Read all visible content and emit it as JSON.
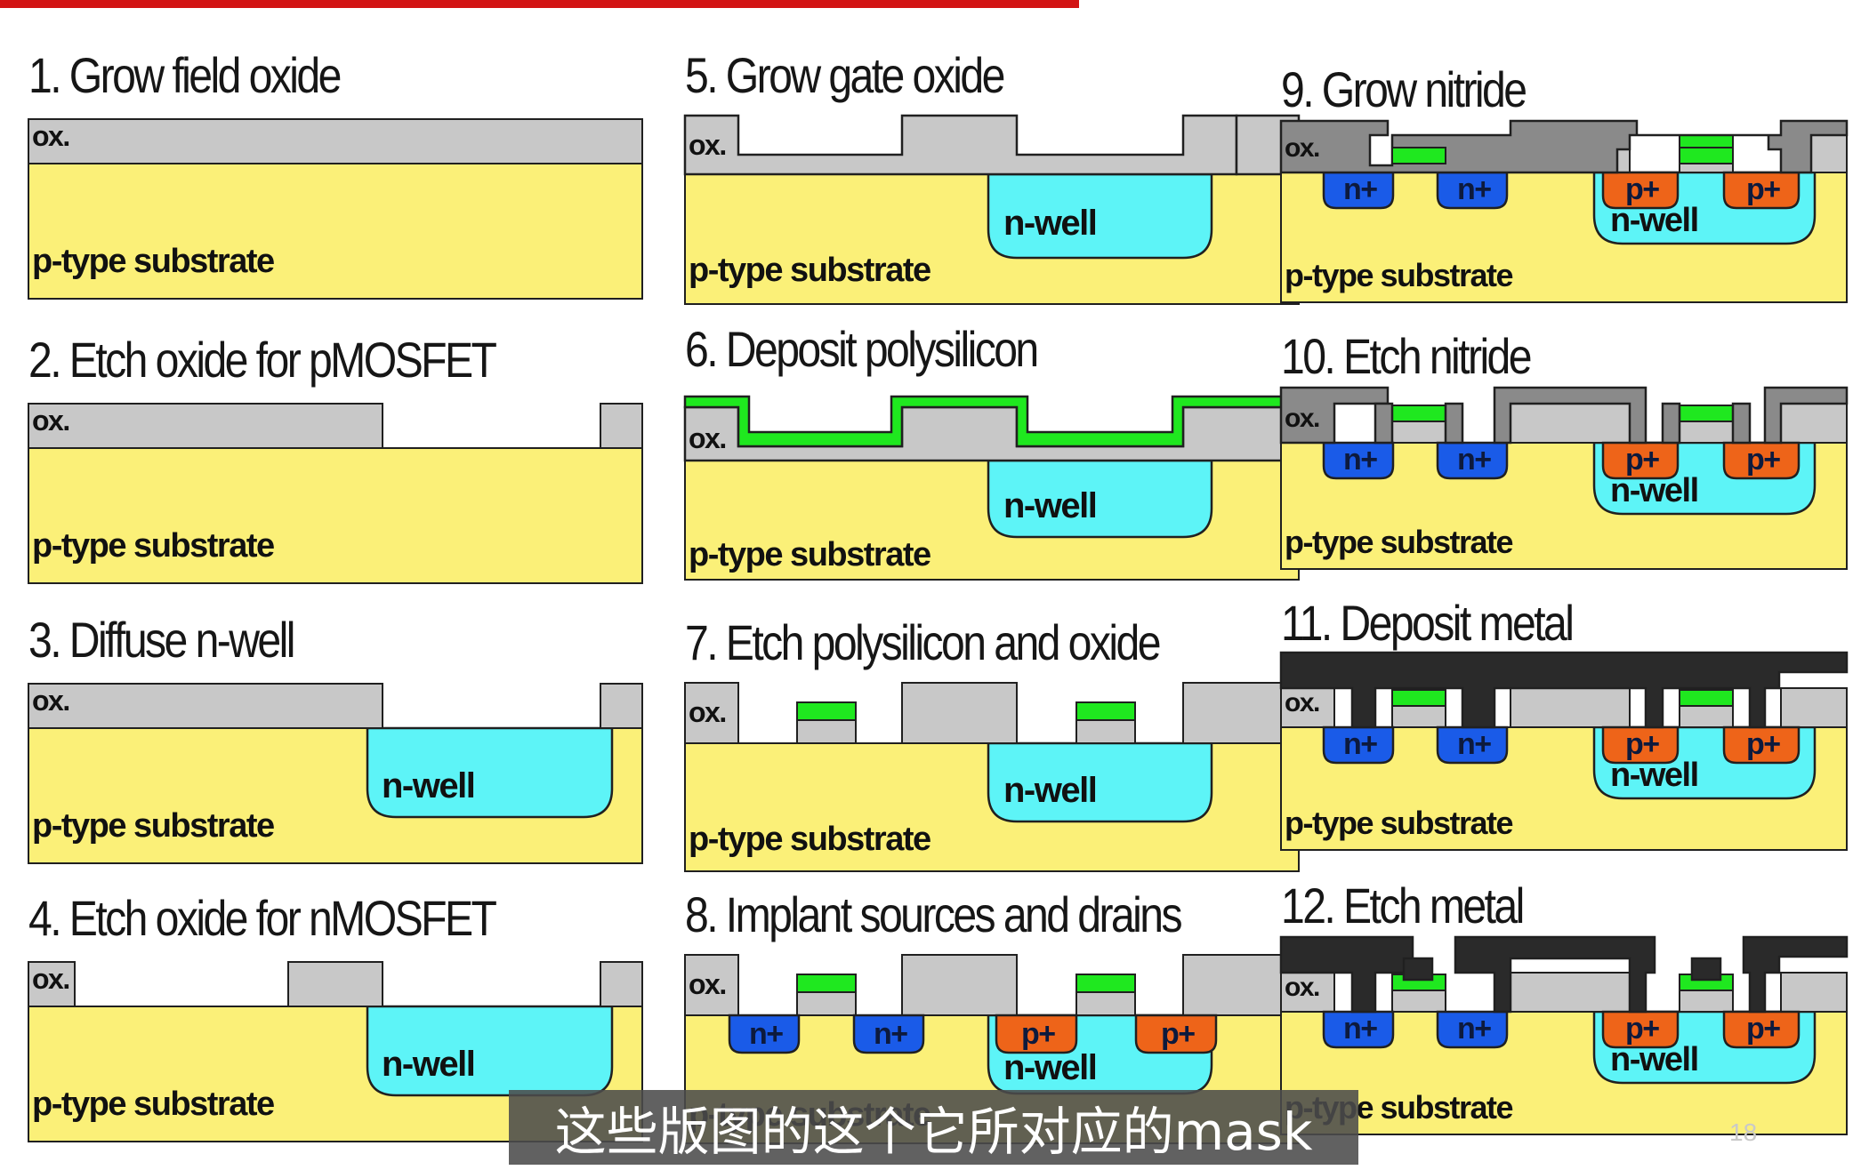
{
  "steps": [
    {
      "title": "1. Grow field oxide"
    },
    {
      "title": "2. Etch oxide for pMOSFET"
    },
    {
      "title": "3. Diffuse n-well"
    },
    {
      "title": "4. Etch oxide for nMOSFET"
    },
    {
      "title": "5. Grow gate oxide"
    },
    {
      "title": "6. Deposit polysilicon"
    },
    {
      "title": "7. Etch polysilicon and oxide"
    },
    {
      "title": "8. Implant sources and drains"
    },
    {
      "title": "9. Grow nitride"
    },
    {
      "title": "10. Etch nitride"
    },
    {
      "title": "11. Deposit metal"
    },
    {
      "title": "12. Etch metal"
    }
  ],
  "labels": {
    "oxide": "ox.",
    "substrate": "p-type substrate",
    "nwell": "n-well",
    "nplus": "n+",
    "pplus": "p+"
  },
  "caption": "这些版图的这个它所对应的mask",
  "page_number": "18",
  "colors": {
    "substrate": "#fbf078",
    "nwell": "#5df4f7",
    "oxide": "#c8c8c8",
    "polysilicon": "#1fe81f",
    "nplus": "#1a5be8",
    "pplus": "#ee6419",
    "nitride": "#8a8a8a",
    "metal": "#2a2a2a",
    "accent_bar": "#d21414"
  }
}
